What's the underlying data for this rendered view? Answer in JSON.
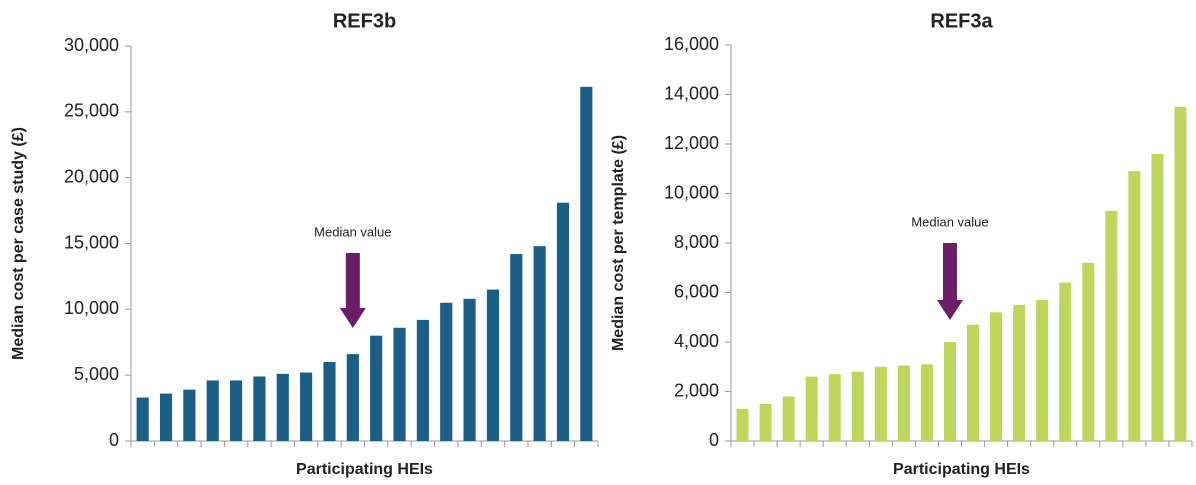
{
  "chart_data": [
    {
      "type": "bar",
      "title": "REF3b",
      "xlabel": "Participating HEIs",
      "ylabel": "Median cost per case study (£)",
      "categories": [
        null,
        null,
        null,
        null,
        null,
        null,
        null,
        null,
        null,
        null,
        null,
        null,
        null,
        null,
        null,
        null,
        null,
        null,
        null,
        null
      ],
      "values": [
        3300,
        3600,
        3900,
        4600,
        4600,
        4900,
        5100,
        5200,
        6000,
        6600,
        8000,
        8600,
        9200,
        10500,
        10800,
        11500,
        14200,
        14800,
        18100,
        26900
      ],
      "color": "#1b5f87",
      "annotation": "Median value",
      "ylim": [
        0,
        30000
      ],
      "yticks": [
        0,
        {
          "value": 5000,
          "label": "5,000"
        },
        {
          "value": 10000,
          "label": "10,000"
        },
        {
          "value": 15000,
          "label": "15,000"
        },
        {
          "value": 20000,
          "label": "20,000"
        },
        {
          "value": 25000,
          "label": "25,000"
        },
        {
          "value": 30000,
          "label": "30,000"
        }
      ],
      "grid": false
    },
    {
      "type": "bar",
      "title": "REF3a",
      "xlabel": "Participating HEIs",
      "ylabel": "Median cost per template (£)",
      "categories": [
        null,
        null,
        null,
        null,
        null,
        null,
        null,
        null,
        null,
        null,
        null,
        null,
        null,
        null,
        null,
        null,
        null,
        null,
        null,
        null
      ],
      "values": [
        1300,
        1500,
        1800,
        2600,
        2700,
        2800,
        3000,
        3050,
        3100,
        4000,
        4700,
        5200,
        5500,
        5700,
        6400,
        7200,
        9300,
        10900,
        11600,
        13500
      ],
      "color": "#bdd65b",
      "annotation": "Median value",
      "ylim": [
        0,
        16000
      ],
      "yticks": [
        0,
        {
          "value": 2000,
          "label": "2,000"
        },
        {
          "value": 4000,
          "label": "4,000"
        },
        {
          "value": 6000,
          "label": "6,000"
        },
        {
          "value": 8000,
          "label": "8,000"
        },
        {
          "value": 10000,
          "label": "10,000"
        },
        {
          "value": 12000,
          "label": "12,000"
        },
        {
          "value": 14000,
          "label": "14,000"
        },
        {
          "value": 16000,
          "label": "16,000"
        }
      ],
      "grid": false
    }
  ]
}
